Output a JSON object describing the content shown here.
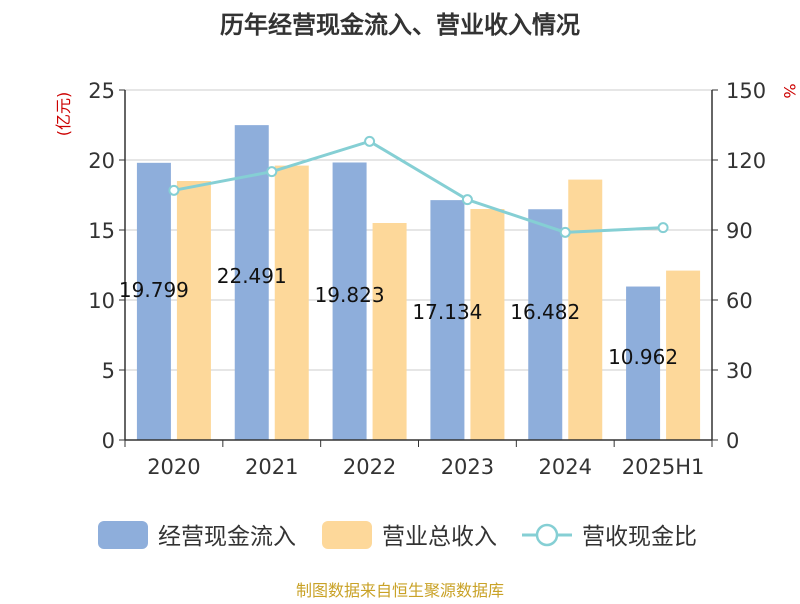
{
  "chart_data": {
    "type": "bar",
    "title": "历年经营现金流入、营业收入情况",
    "categories": [
      "2020",
      "2021",
      "2022",
      "2023",
      "2024",
      "2025H1"
    ],
    "y_left": {
      "label": "(亿元)",
      "ylim": [
        0,
        25
      ],
      "ticks": [
        "0",
        "5",
        "10",
        "15",
        "20",
        "25"
      ]
    },
    "y_right": {
      "label": "%",
      "ylim": [
        0,
        150
      ],
      "ticks": [
        "0",
        "30",
        "60",
        "90",
        "120",
        "150"
      ]
    },
    "series": [
      {
        "name": "经营现金流入",
        "kind": "bar",
        "axis": "left",
        "color": "#8eaedb",
        "values": [
          19.799,
          22.491,
          19.823,
          17.134,
          16.482,
          10.962
        ],
        "data_labels": [
          "19.799",
          "22.491",
          "19.823",
          "17.134",
          "16.482",
          "10.962"
        ]
      },
      {
        "name": "营业总收入",
        "kind": "bar",
        "axis": "left",
        "color": "#fdd89a",
        "values": [
          18.5,
          19.6,
          15.5,
          16.5,
          18.6,
          12.1
        ]
      },
      {
        "name": "营收现金比",
        "kind": "line",
        "axis": "right",
        "color": "#85cfd4",
        "values": [
          107,
          115,
          128,
          103,
          89,
          91
        ]
      }
    ],
    "grid": true,
    "legend_position": "bottom"
  },
  "legend": {
    "items": [
      {
        "name": "经营现金流入",
        "shape": "bar",
        "color": "#8eaedb"
      },
      {
        "name": "营业总收入",
        "shape": "bar",
        "color": "#fdd89a"
      },
      {
        "name": "营收现金比",
        "shape": "line",
        "color": "#85cfd4"
      }
    ]
  },
  "footer": {
    "source": "制图数据来自恒生聚源数据库"
  }
}
